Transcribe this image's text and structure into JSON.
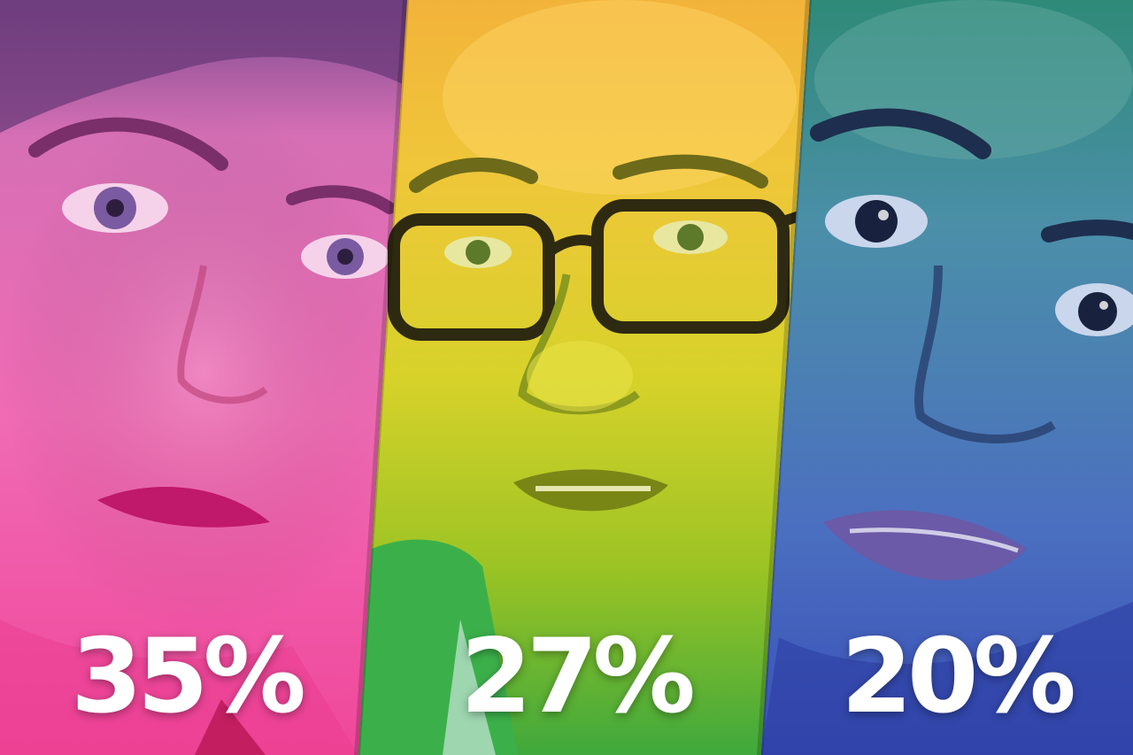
{
  "panels": [
    {
      "subject": "woman-portrait",
      "tint": "#e8449a",
      "percentage": "35%"
    },
    {
      "subject": "man-with-glasses-portrait",
      "tint": "#9ac21e",
      "percentage": "27%"
    },
    {
      "subject": "young-man-portrait",
      "tint": "#3f6fc8",
      "percentage": "20%"
    }
  ]
}
